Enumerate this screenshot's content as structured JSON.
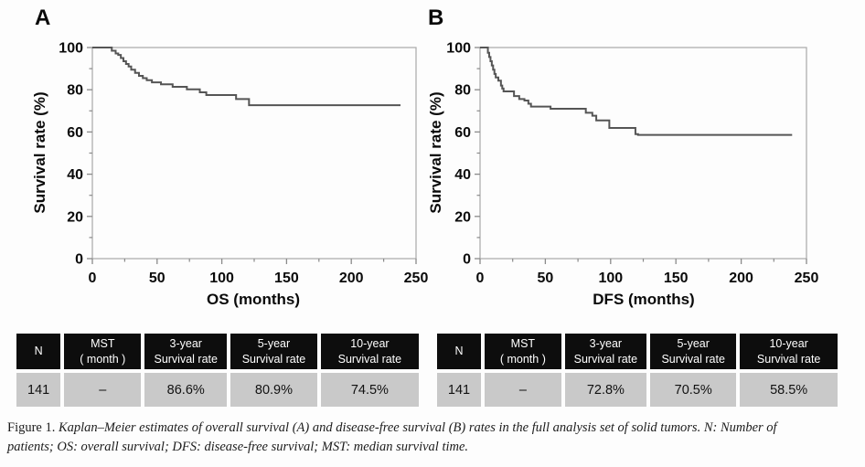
{
  "accent_colors": {
    "curve": "#555555",
    "plot_frame": "#a9a9a9",
    "tick": "#8a8a8a",
    "table_header_bg": "#0d0d0d",
    "table_header_text": "#ffffff",
    "table_row_bg": "#c9c9c9",
    "page_bg": "#fdfdfd"
  },
  "chart_data": [
    {
      "type": "line",
      "subtype": "kaplan-meier-step",
      "title": "A",
      "xlabel": "OS (months)",
      "ylabel": "Survival rate (%)",
      "xlim": [
        0,
        250
      ],
      "ylim": [
        0,
        100
      ],
      "xticks": [
        0,
        50,
        100,
        150,
        200,
        250
      ],
      "yticks": [
        0,
        20,
        40,
        60,
        80,
        100
      ],
      "x_minor_ticks": [
        25,
        75,
        125,
        175,
        225
      ],
      "y_minor_ticks": [
        10,
        30,
        50,
        70,
        90
      ],
      "grid": false,
      "legend": "none",
      "series": [
        {
          "name": "OS",
          "points": [
            [
              0,
              100
            ],
            [
              13,
              100
            ],
            [
              15,
              98.5
            ],
            [
              18,
              97.2
            ],
            [
              20,
              96.5
            ],
            [
              22,
              95.0
            ],
            [
              24,
              93.5
            ],
            [
              26,
              92.2
            ],
            [
              28,
              91.0
            ],
            [
              30,
              89.5
            ],
            [
              33,
              88.0
            ],
            [
              36,
              86.6
            ],
            [
              39,
              85.5
            ],
            [
              42,
              84.5
            ],
            [
              46,
              83.5
            ],
            [
              53,
              82.6
            ],
            [
              62,
              81.4
            ],
            [
              73,
              80.2
            ],
            [
              83,
              78.8
            ],
            [
              88,
              77.5
            ],
            [
              111,
              75.6
            ],
            [
              121,
              72.7
            ],
            [
              238,
              72.7
            ]
          ]
        }
      ]
    },
    {
      "type": "line",
      "subtype": "kaplan-meier-step",
      "title": "B",
      "xlabel": "DFS (months)",
      "ylabel": "Survival rate (%)",
      "xlim": [
        0,
        250
      ],
      "ylim": [
        0,
        100
      ],
      "xticks": [
        0,
        50,
        100,
        150,
        200,
        250
      ],
      "yticks": [
        0,
        20,
        40,
        60,
        80,
        100
      ],
      "x_minor_ticks": [
        25,
        75,
        125,
        175,
        225
      ],
      "y_minor_ticks": [
        10,
        30,
        50,
        70,
        90
      ],
      "grid": false,
      "legend": "none",
      "series": [
        {
          "name": "DFS",
          "points": [
            [
              0,
              100
            ],
            [
              5,
              100
            ],
            [
              6,
              97.5
            ],
            [
              7,
              95.5
            ],
            [
              8,
              93.5
            ],
            [
              9,
              91.5
            ],
            [
              10,
              89.5
            ],
            [
              11,
              87.5
            ],
            [
              12,
              85.8
            ],
            [
              14,
              84.3
            ],
            [
              16,
              82.0
            ],
            [
              17,
              80.6
            ],
            [
              18,
              79.2
            ],
            [
              26,
              77.0
            ],
            [
              30,
              75.6
            ],
            [
              34,
              74.9
            ],
            [
              37,
              73.4
            ],
            [
              39,
              72.0
            ],
            [
              54,
              71.0
            ],
            [
              81,
              69.1
            ],
            [
              86,
              67.7
            ],
            [
              89,
              65.5
            ],
            [
              99,
              61.9
            ],
            [
              119,
              59.0
            ],
            [
              121,
              58.6
            ],
            [
              239,
              58.6
            ]
          ]
        }
      ]
    }
  ],
  "tables": [
    {
      "columns": [
        {
          "line1": "N",
          "line2": ""
        },
        {
          "line1": "MST",
          "line2": "( month )"
        },
        {
          "line1": "3-year",
          "line2": "Survival rate"
        },
        {
          "line1": "5-year",
          "line2": "Survival rate"
        },
        {
          "line1": "10-year",
          "line2": "Survival rate"
        }
      ],
      "row": [
        "141",
        "–",
        "86.6%",
        "80.9%",
        "74.5%"
      ]
    },
    {
      "columns": [
        {
          "line1": "N",
          "line2": ""
        },
        {
          "line1": "MST",
          "line2": "( month )"
        },
        {
          "line1": "3-year",
          "line2": "Survival rate"
        },
        {
          "line1": "5-year",
          "line2": "Survival rate"
        },
        {
          "line1": "10-year",
          "line2": "Survival rate"
        }
      ],
      "row": [
        "141",
        "–",
        "72.8%",
        "70.5%",
        "58.5%"
      ]
    }
  ],
  "caption": {
    "prefix": "Figure 1. ",
    "line1": "Kaplan–Meier estimates of overall survival (A) and disease-free survival (B) rates in the full analysis set of solid tumors. N: Number of",
    "line2": "patients; OS: overall survival; DFS: disease-free survival; MST: median survival time."
  }
}
